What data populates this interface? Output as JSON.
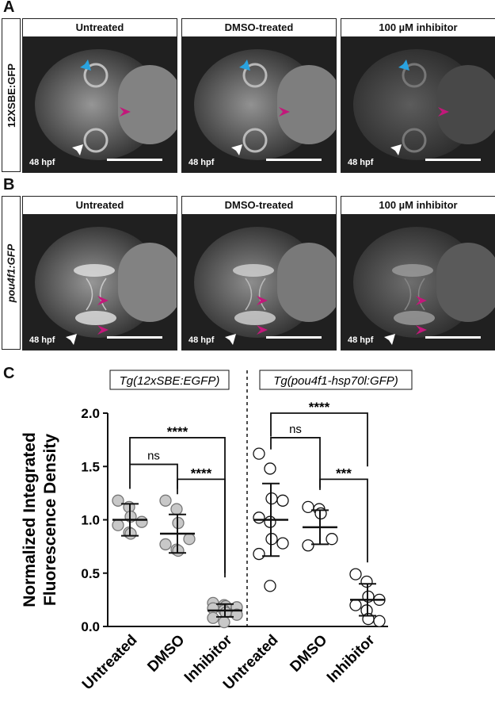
{
  "panels": {
    "a": {
      "letter": "A",
      "side_label": "12XSBE:GFP",
      "tiles": [
        {
          "title": "Untreated",
          "stage": "48 hpf",
          "brightness": 1.0
        },
        {
          "title": "DMSO-treated",
          "stage": "48 hpf",
          "brightness": 0.95
        },
        {
          "title": "100 µM inhibitor",
          "stage": "48 hpf",
          "brightness": 0.35
        }
      ]
    },
    "b": {
      "letter": "B",
      "side_label": "pou4f1:GFP",
      "tiles": [
        {
          "title": "Untreated",
          "stage": "48 hpf",
          "brightness": 1.0
        },
        {
          "title": "DMSO-treated",
          "stage": "48 hpf",
          "brightness": 0.9
        },
        {
          "title": "100 µM inhibitor",
          "stage": "48 hpf",
          "brightness": 0.55
        }
      ]
    },
    "c": {
      "letter": "C"
    }
  },
  "colors": {
    "blue_arrow": "#29a3e0",
    "magenta_arrow": "#c2187a",
    "white_arrow": "#ffffff",
    "filled_point": "#c8c8c8"
  },
  "chart_data": {
    "type": "scatter",
    "ylabel_line1": "Normalized Integrated",
    "ylabel_line2": "Fluorescence Density",
    "ylim": [
      0,
      2.0
    ],
    "yticks": [
      "0.0",
      "0.5",
      "1.0",
      "1.5",
      "2.0"
    ],
    "groups": [
      {
        "title": "Tg(12xSBE:EGFP)",
        "marker": "filled",
        "categories": [
          {
            "name": "Untreated",
            "mean": 1.0,
            "sd": 0.15,
            "points": [
              1.18,
              1.12,
              1.03,
              0.98,
              0.95,
              0.88,
              0.87
            ]
          },
          {
            "name": "DMSO",
            "mean": 0.87,
            "sd": 0.18,
            "points": [
              1.18,
              1.1,
              0.97,
              0.82,
              0.77,
              0.72,
              0.71
            ]
          },
          {
            "name": "Inhibitor",
            "mean": 0.15,
            "sd": 0.06,
            "points": [
              0.22,
              0.2,
              0.19,
              0.18,
              0.17,
              0.15,
              0.13,
              0.11,
              0.08,
              0.04
            ]
          }
        ],
        "comparisons": [
          {
            "from": 0,
            "to": 1,
            "label": "ns"
          },
          {
            "from": 1,
            "to": 2,
            "label": "****"
          },
          {
            "from": 0,
            "to": 2,
            "label": "****"
          }
        ]
      },
      {
        "title": "Tg(pou4f1-hsp70l:GFP)",
        "marker": "open",
        "categories": [
          {
            "name": "Untreated",
            "mean": 1.0,
            "sd": 0.34,
            "points": [
              1.62,
              1.48,
              1.2,
              1.18,
              1.02,
              0.98,
              0.82,
              0.78,
              0.68,
              0.38
            ]
          },
          {
            "name": "DMSO",
            "mean": 0.93,
            "sd": 0.16,
            "points": [
              1.12,
              1.1,
              1.06,
              0.82,
              0.76
            ]
          },
          {
            "name": "Inhibitor",
            "mean": 0.25,
            "sd": 0.15,
            "points": [
              0.49,
              0.42,
              0.28,
              0.25,
              0.2,
              0.15,
              0.07,
              0.05
            ]
          }
        ],
        "comparisons": [
          {
            "from": 0,
            "to": 1,
            "label": "ns"
          },
          {
            "from": 1,
            "to": 2,
            "label": "***"
          },
          {
            "from": 0,
            "to": 2,
            "label": "****"
          }
        ]
      }
    ]
  }
}
